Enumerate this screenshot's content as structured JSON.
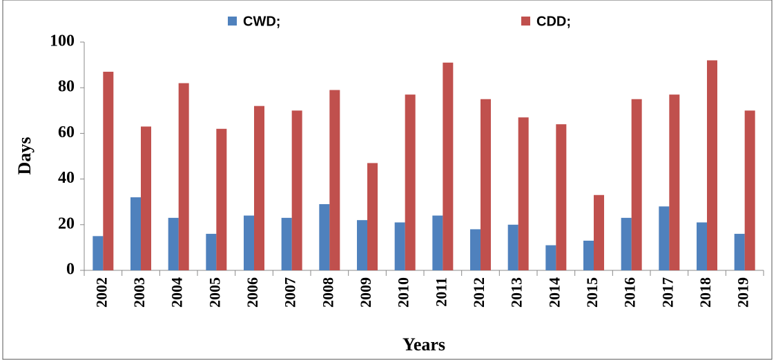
{
  "chart_data": {
    "type": "bar",
    "categories": [
      "2002",
      "2003",
      "2004",
      "2005",
      "2006",
      "2007",
      "2008",
      "2009",
      "2010",
      "2011",
      "2012",
      "2013",
      "2014",
      "2015",
      "2016",
      "2017",
      "2018",
      "2019"
    ],
    "series": [
      {
        "name": "CWD;",
        "color": "#4f81bd",
        "values": [
          15,
          32,
          23,
          16,
          24,
          23,
          29,
          22,
          21,
          24,
          18,
          20,
          11,
          13,
          23,
          28,
          21,
          16
        ]
      },
      {
        "name": "CDD;",
        "color": "#c0504d",
        "values": [
          87,
          63,
          82,
          62,
          72,
          70,
          79,
          47,
          77,
          91,
          75,
          67,
          64,
          33,
          75,
          77,
          92,
          70
        ]
      }
    ],
    "y_label": "Days",
    "x_label": "Years",
    "ylim": [
      0,
      100
    ],
    "yticks": [
      0,
      20,
      40,
      60,
      80,
      100
    ],
    "grid": false,
    "legend": "top"
  }
}
